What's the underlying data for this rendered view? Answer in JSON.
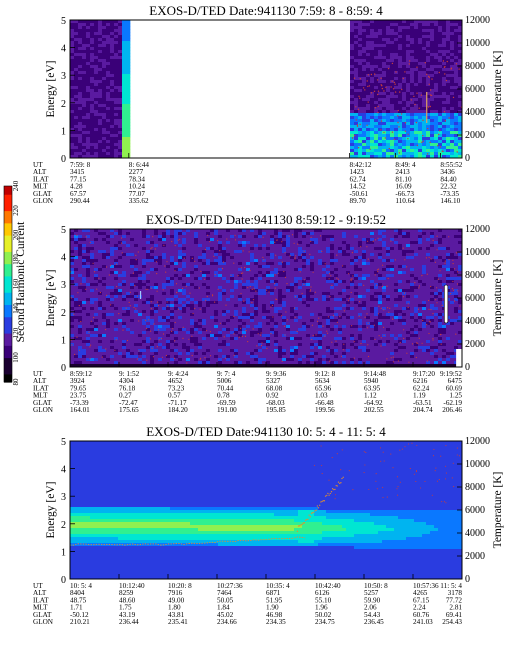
{
  "colors": {
    "cmap": [
      "#000000",
      "#1a0030",
      "#3a0078",
      "#5a1aa0",
      "#2a3ce0",
      "#0a78ff",
      "#00b4f0",
      "#00e6d2",
      "#30f090",
      "#90f050",
      "#e6f028",
      "#ffc800",
      "#ff7800",
      "#ff2000",
      "#c00000"
    ],
    "noise": "#c83c3c",
    "temperature": "#e08c32"
  },
  "colorbar": {
    "label": "Second Harmonic Current",
    "ticks": [
      "80",
      "100",
      "120",
      "140",
      "160",
      "180",
      "200",
      "220",
      "240"
    ]
  },
  "chart_data": [
    {
      "type": "heatmap",
      "title": "EXOS-D/TED   Date:941130  7:59: 8 - 8:59: 4",
      "ylabel": "Energy [eV]",
      "y2label": "Temperature [K]",
      "ylim": [
        0,
        5
      ],
      "y2lim": [
        0,
        12000
      ],
      "yticks": [
        "0",
        "1",
        "2",
        "3",
        "4",
        "5"
      ],
      "y2ticks": [
        "0",
        "2000",
        "4000",
        "6000",
        "8000",
        "10000",
        "12000"
      ],
      "data_gap": {
        "from": "8: 6:44",
        "to": "8:42:12"
      },
      "ephemeris_labels": [
        "UT",
        "ALT",
        "ILAT",
        "MLT",
        "GLAT",
        "GLON"
      ],
      "ephemeris": [
        [
          "7:59: 8",
          "3415",
          "77.15",
          "4.28",
          "67.57",
          "290.44"
        ],
        [
          "8: 6:44",
          "2277",
          "78.34",
          "10.24",
          "77.07",
          "335.62"
        ],
        [
          "8:42:12",
          "1423",
          "62.74",
          "14.52",
          "-50.61",
          "89.70"
        ],
        [
          "8:49: 4",
          "2413",
          "81.10",
          "16.09",
          "-66.73",
          "110.64"
        ],
        [
          "8:55:52",
          "3436",
          "84.40",
          "22.32",
          "-73.35",
          "146.10"
        ]
      ]
    },
    {
      "type": "heatmap",
      "title": "EXOS-D/TED   Date:941130  8:59:12 - 9:19:52",
      "ylabel": "Energy [eV]",
      "y2label": "Temperature [K]",
      "ylim": [
        0,
        5
      ],
      "y2lim": [
        0,
        12000
      ],
      "yticks": [
        "0",
        "1",
        "2",
        "3",
        "4",
        "5"
      ],
      "y2ticks": [
        "0",
        "2000",
        "4000",
        "6000",
        "8000",
        "10000",
        "12000"
      ],
      "ephemeris_labels": [
        "UT",
        "ALT",
        "ILAT",
        "MLT",
        "GLAT",
        "GLON"
      ],
      "ephemeris": [
        [
          "8:59:12",
          "3924",
          "79.65",
          "23.75",
          "-73.39",
          "164.01"
        ],
        [
          "9: 1:52",
          "4304",
          "76.18",
          "0.27",
          "-72.47",
          "175.65"
        ],
        [
          "9: 4:24",
          "4652",
          "73.23",
          "0.57",
          "-71.17",
          "184.20"
        ],
        [
          "9: 7: 4",
          "5006",
          "70.44",
          "0.78",
          "-69.59",
          "191.00"
        ],
        [
          "9: 9:36",
          "5327",
          "68.08",
          "0.92",
          "-68.03",
          "195.85"
        ],
        [
          "9:12: 8",
          "5634",
          "65.96",
          "1.03",
          "-66.48",
          "199.56"
        ],
        [
          "9:14:48",
          "5940",
          "63.95",
          "1.12",
          "-64.92",
          "202.55"
        ],
        [
          "9:17:20",
          "6216",
          "62.24",
          "1.19",
          "-63.51",
          "204.74"
        ],
        [
          "9:19:52",
          "6475",
          "60.69",
          "1.25",
          "-62.19",
          "206.46"
        ]
      ]
    },
    {
      "type": "heatmap",
      "title": "EXOS-D/TED   Date:941130  10: 5: 4 - 11: 5: 4",
      "ylabel": "Energy [eV]",
      "y2label": "Temperature [K]",
      "ylim": [
        0,
        5
      ],
      "y2lim": [
        0,
        12000
      ],
      "yticks": [
        "0",
        "1",
        "2",
        "3",
        "4",
        "5"
      ],
      "y2ticks": [
        "0",
        "2000",
        "4000",
        "6000",
        "8000",
        "10000",
        "12000"
      ],
      "ephemeris_labels": [
        "UT",
        "ALT",
        "ILAT",
        "MLT",
        "GLAT",
        "GLON"
      ],
      "ephemeris": [
        [
          "10: 5: 4",
          "8404",
          "48.75",
          "1.71",
          "-50.12",
          "210.21"
        ],
        [
          "10:12:40",
          "8259",
          "48.60",
          "1.75",
          "43.19",
          "236.44"
        ],
        [
          "10:20: 8",
          "7916",
          "49.00",
          "1.80",
          "43.81",
          "235.41"
        ],
        [
          "10:27:36",
          "7464",
          "50.05",
          "1.84",
          "45.02",
          "234.66"
        ],
        [
          "10:35: 4",
          "6871",
          "51.95",
          "1.90",
          "46.98",
          "234.35"
        ],
        [
          "10:42:40",
          "6126",
          "55.10",
          "1.96",
          "50.02",
          "234.75"
        ],
        [
          "10:50: 8",
          "5257",
          "59.90",
          "2.06",
          "54.43",
          "236.45"
        ],
        [
          "10:57:36",
          "4265",
          "67.15",
          "2.24",
          "60.76",
          "241.03"
        ],
        [
          "11: 5: 4",
          "3178",
          "77.72",
          "2.81",
          "69.41",
          "254.43"
        ]
      ]
    }
  ]
}
